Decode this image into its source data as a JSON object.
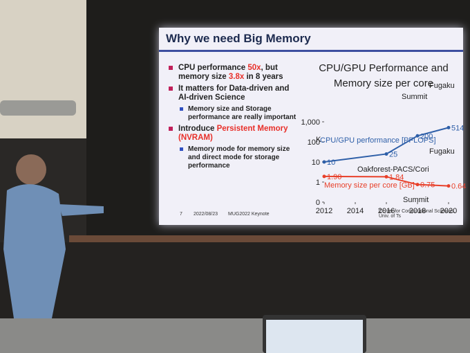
{
  "slide": {
    "title": "Why we need Big Memory",
    "bullets": [
      {
        "level": 1,
        "runs": [
          {
            "text": "CPU performance "
          },
          {
            "text": "50x",
            "highlight": true
          },
          {
            "text": ", but memory size "
          },
          {
            "text": "3.8x",
            "highlight": true
          },
          {
            "text": " in 8 years"
          }
        ]
      },
      {
        "level": 1,
        "runs": [
          {
            "text": "It matters for Data-driven and AI-driven Science"
          }
        ]
      },
      {
        "level": 2,
        "runs": [
          {
            "text": "Memory size and Storage performance are really important"
          }
        ]
      },
      {
        "level": 1,
        "runs": [
          {
            "text": "Introduce "
          },
          {
            "text": "Persistent Memory (NVRAM)",
            "highlight": true
          }
        ]
      },
      {
        "level": 2,
        "runs": [
          {
            "text": "Memory mode for memory size and direct mode for storage performance"
          }
        ]
      }
    ],
    "highlight_color": "#e8302a",
    "footer": {
      "page": "7",
      "date": "2022/08/23",
      "event": "MUG2022 Keynote",
      "org": "Center for Computational Sciences, Univ. of Ts"
    }
  },
  "chart_data": {
    "type": "line",
    "title": "CPU/GPU Performance and Memory size per core",
    "x": [
      2012,
      2016,
      2018,
      2020
    ],
    "series": [
      {
        "name": "CPU/GPU performance [PFLOPS]",
        "color": "#2e5fa8",
        "values": [
          10,
          25,
          200,
          514
        ],
        "value_labels": [
          "10",
          "25",
          "200",
          "514"
        ]
      },
      {
        "name": "Memory size per core [GB]",
        "color": "#e8402a",
        "values": [
          1.9,
          1.84,
          0.75,
          0.64
        ],
        "value_labels": [
          "1.90",
          "1.84",
          "0.75",
          "0.64"
        ]
      }
    ],
    "annotations": [
      "K",
      "Oakforest-PACS/Cori",
      "Summit",
      "Fugaku",
      "Fugaku",
      "Summit"
    ],
    "log_scale": true,
    "xlim": [
      2012,
      2020
    ],
    "xticks": [
      2012,
      2014,
      2016,
      2018,
      2020
    ],
    "ylim": [
      0.1,
      1000
    ],
    "yticks": [
      {
        "value": 1000,
        "label": "1,000"
      },
      100,
      10,
      1,
      {
        "value": 0.1,
        "label": "0"
      }
    ]
  }
}
